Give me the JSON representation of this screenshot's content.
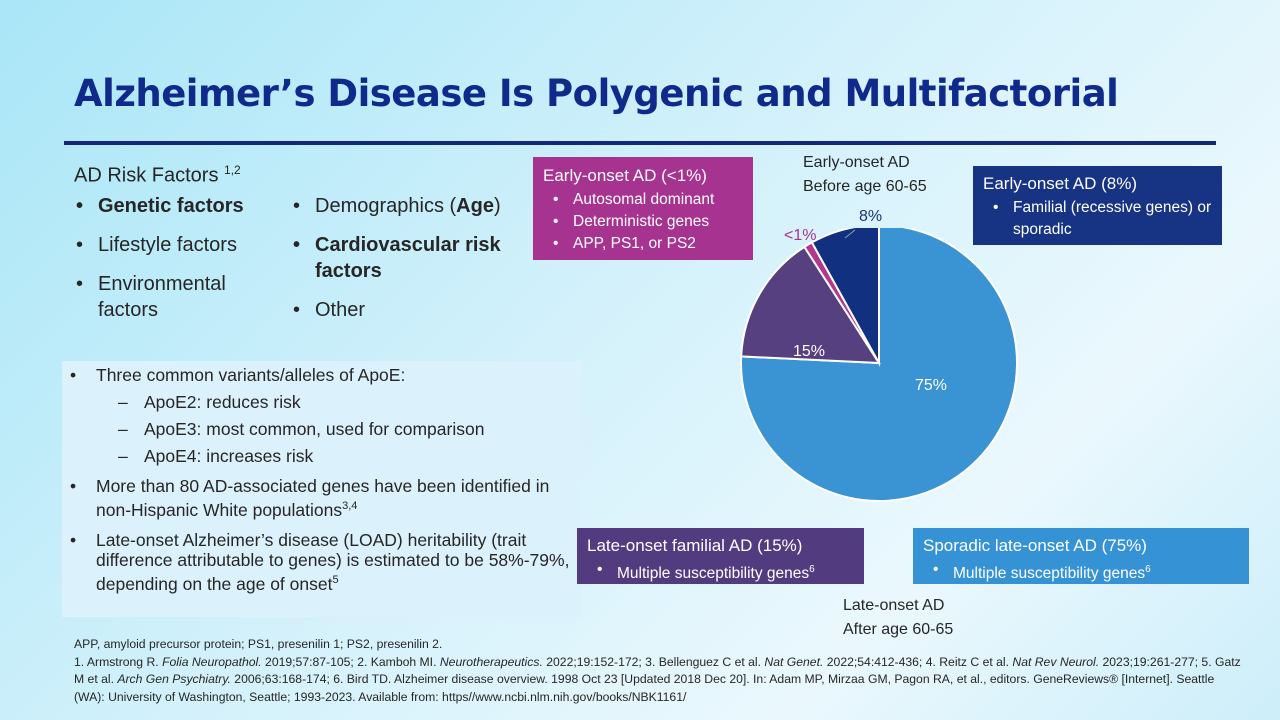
{
  "title": "Alzheimer’s Disease Is Polygenic and Multifactorial",
  "risk_factors": {
    "heading": "AD Risk Factors",
    "heading_sup": "1,2",
    "col1": [
      {
        "text": "Genetic factors",
        "bold": true
      },
      {
        "text": "Lifestyle factors",
        "bold": false
      },
      {
        "text": "Environmental factors",
        "bold": false
      }
    ],
    "col2": [
      {
        "pre": "Demographics (",
        "bold_part": "Age",
        "post": ")"
      },
      {
        "text": "Cardiovascular risk factors",
        "bold": true
      },
      {
        "text": "Other",
        "bold": false
      }
    ]
  },
  "apoe": {
    "b1": "Three common variants/alleles of ApoE:",
    "subs": [
      "ApoE2: reduces risk",
      "ApoE3: most common, used for comparison",
      "ApoE4: increases risk"
    ],
    "b2": "More than 80 AD-associated genes have been identified in non-Hispanic White populations",
    "b2_sup": "3,4",
    "b3": "Late-onset Alzheimer’s disease (LOAD) heritability (trait difference attributable to genes) is estimated to be 58%-79%, depending on the age of onset",
    "b3_sup": "5"
  },
  "chart_data": {
    "type": "pie",
    "slices": [
      {
        "label": "75%",
        "value": 75,
        "color": "#3a93d3"
      },
      {
        "label": "15%",
        "value": 15,
        "color": "#57407f"
      },
      {
        "label": "<1%",
        "value": 1,
        "color": "#b2388f"
      },
      {
        "label": "8%",
        "value": 8,
        "color": "#11307f"
      }
    ],
    "start": "12 o'clock, clockwise"
  },
  "labels": {
    "early_onset_top_1": "Early-onset AD",
    "early_onset_top_2": "Before age 60-65",
    "late_onset_bottom_1": "Late-onset AD",
    "late_onset_bottom_2": "After age 60-65",
    "lt1": "<1%",
    "pct8": "8%",
    "pct15": "15%",
    "pct75": "75%"
  },
  "boxes": {
    "early1": {
      "title": "Early-onset AD (<1%)",
      "items": [
        "Autosomal dominant",
        "Deterministic genes",
        "APP, PS1, or PS2"
      ],
      "color": "#a63390"
    },
    "early8": {
      "title": "Early-onset AD (8%)",
      "items": [
        "Familial (recessive genes) or sporadic"
      ],
      "color": "#163384"
    },
    "late_familial": {
      "title": "Late-onset familial AD (15%)",
      "item": "Multiple susceptibility genes",
      "sup": "6",
      "color": "#533b80"
    },
    "sporadic": {
      "title": "Sporadic late-onset AD (75%)",
      "item": "Multiple susceptibility genes",
      "sup": "6",
      "color": "#3592d5"
    }
  },
  "footnotes": {
    "abbrev": "APP, amyloid precursor protein; PS1, presenilin 1; PS2, presenilin 2.",
    "r1a": "1. Armstrong R. ",
    "r1j": "Folia Neuropathol.",
    "r1b": " 2019;57:87-105;  2. Kamboh MI. ",
    "r2j": "Neurotherapeutics.",
    "r2b": " 2022;19:152-172;  3. Bellenguez C et al. ",
    "r3j": "Nat Genet.",
    "r3b": " 2022;54:412-436;  4. Reitz C et al. ",
    "r4j": "Nat Rev Neurol.",
    "r4b": " 2023;19:261-277;  5. Gatz M et al. ",
    "r5j": "Arch Gen Psychiatry.",
    "r5b": " 2006;63:168-174;  6. Bird TD. Alzheimer disease overview. 1998 Oct 23 [Updated 2018 Dec 20]. In: Adam MP, Mirzaa GM, Pagon RA, et al., editors. GeneReviews® [Internet]. Seattle (WA): University of Washington, Seattle; 1993-2023. Available from: https//www.ncbi.nlm.nih.gov/books/NBK1161/"
  }
}
